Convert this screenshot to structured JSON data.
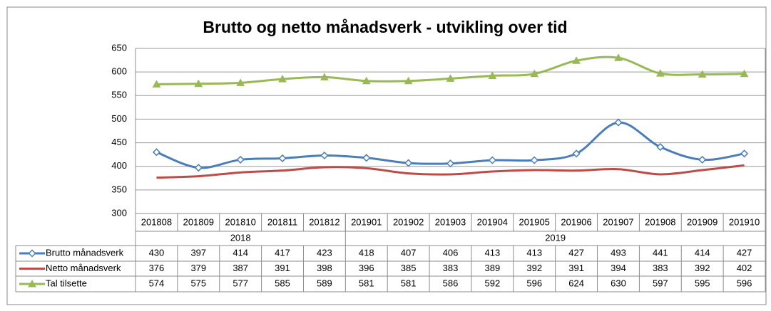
{
  "chart_data": {
    "type": "line",
    "title": "Brutto og netto månadsverk - utvikling over tid",
    "categories": [
      "201808",
      "201809",
      "201810",
      "201811",
      "201812",
      "201901",
      "201902",
      "201903",
      "201904",
      "201905",
      "201906",
      "201907",
      "201908",
      "201909",
      "201910"
    ],
    "category_groups": [
      {
        "label": "2018",
        "size": 5
      },
      {
        "label": "2019",
        "size": 10
      }
    ],
    "series": [
      {
        "name": "Brutto månadsverk",
        "color": "#4a7ebb",
        "marker": "diamond",
        "values": [
          430,
          397,
          414,
          417,
          423,
          418,
          407,
          406,
          413,
          413,
          427,
          493,
          441,
          414,
          427
        ]
      },
      {
        "name": "Netto månadsverk",
        "color": "#be4b48",
        "marker": "none",
        "values": [
          376,
          379,
          387,
          391,
          398,
          396,
          385,
          383,
          389,
          392,
          391,
          394,
          383,
          392,
          402
        ]
      },
      {
        "name": "Tal tilsette",
        "color": "#98b954",
        "marker": "triangle",
        "values": [
          574,
          575,
          577,
          585,
          589,
          581,
          581,
          586,
          592,
          596,
          624,
          630,
          597,
          595,
          596
        ]
      }
    ],
    "ylim": [
      300,
      650
    ],
    "yticks": [
      300,
      350,
      400,
      450,
      500,
      550,
      600,
      650
    ],
    "grid": true,
    "smooth": true
  }
}
